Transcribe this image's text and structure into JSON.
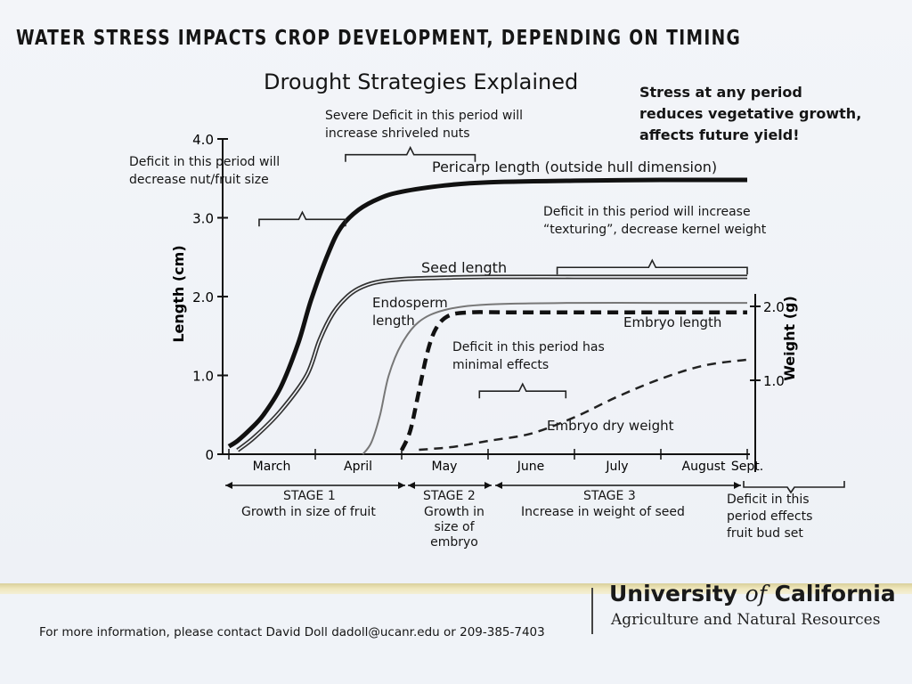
{
  "chart_data": {
    "type": "line",
    "title": "WATER STRESS IMPACTS CROP DEVELOPMENT, DEPENDING ON TIMING",
    "subtitle": "Drought Strategies Explained",
    "ylabel": "Length (cm)",
    "y2label": "Weight (g)",
    "ylim": [
      0,
      4.0
    ],
    "y2lim": [
      0,
      2.0
    ],
    "yticks": [
      "0",
      "1.0",
      "2.0",
      "3.0",
      "4.0"
    ],
    "y2ticks": [
      "1.0",
      "2.0"
    ],
    "xticks": [
      "March",
      "April",
      "May",
      "June",
      "July",
      "August",
      "Sept."
    ],
    "series": [
      {
        "name": "Pericarp length (outside hull dimension)",
        "style": "solid-thick",
        "x": [
          0.0,
          0.1,
          0.25,
          0.4,
          0.6,
          0.8,
          0.95,
          1.15,
          1.3,
          1.5,
          1.75,
          2.0,
          2.5,
          3.0,
          4.0,
          5.0,
          6.0
        ],
        "y": [
          0.1,
          0.17,
          0.32,
          0.5,
          0.85,
          1.4,
          1.95,
          2.55,
          2.88,
          3.1,
          3.25,
          3.33,
          3.41,
          3.45,
          3.47,
          3.48,
          3.48
        ]
      },
      {
        "name": "Seed length",
        "style": "solid-outline",
        "x": [
          0.1,
          0.3,
          0.6,
          0.9,
          1.05,
          1.2,
          1.35,
          1.5,
          1.7,
          2.0,
          2.5,
          3.0,
          4.0,
          5.0,
          6.0
        ],
        "y": [
          0.05,
          0.22,
          0.55,
          1.0,
          1.45,
          1.78,
          1.98,
          2.1,
          2.18,
          2.22,
          2.24,
          2.25,
          2.25,
          2.25,
          2.25
        ]
      },
      {
        "name": "Endosperm length",
        "style": "solid-thin-gray",
        "x": [
          1.55,
          1.65,
          1.75,
          1.85,
          2.0,
          2.2,
          2.5,
          3.0,
          4.0,
          5.0,
          6.0
        ],
        "y": [
          0.0,
          0.15,
          0.5,
          1.0,
          1.4,
          1.68,
          1.83,
          1.9,
          1.92,
          1.92,
          1.92
        ]
      },
      {
        "name": "Embryo length",
        "style": "dashed-thick",
        "x": [
          2.0,
          2.1,
          2.2,
          2.3,
          2.4,
          2.55,
          2.8,
          3.2,
          4.0,
          5.0,
          6.0
        ],
        "y": [
          0.05,
          0.3,
          0.8,
          1.3,
          1.6,
          1.76,
          1.8,
          1.8,
          1.8,
          1.8,
          1.8
        ]
      },
      {
        "name": "Embryo dry weight",
        "style": "dashed-thin",
        "axis": "y2",
        "x": [
          2.2,
          2.6,
          3.0,
          3.5,
          4.0,
          4.5,
          5.0,
          5.5,
          6.0
        ],
        "y": [
          0.06,
          0.1,
          0.18,
          0.28,
          0.5,
          0.78,
          1.02,
          1.2,
          1.28
        ]
      }
    ],
    "brackets": [
      {
        "label": "Deficit in this period will decrease nut/fruit size",
        "from": 0.35,
        "to": 1.35,
        "at": 2.98
      },
      {
        "label": "Severe Deficit in this period will increase shriveled nuts",
        "from": 1.35,
        "to": 2.85,
        "at": 3.8
      },
      {
        "label": "Deficit in this period will increase “texturing”, decrease kernel weight",
        "from": 3.8,
        "to": 6.0,
        "at": 2.37
      },
      {
        "label": "Deficit in this period has minimal effects",
        "from": 2.9,
        "to": 3.9,
        "at": 0.8
      }
    ],
    "stages": [
      {
        "name": "STAGE 1",
        "desc": [
          "Growth in size of fruit"
        ]
      },
      {
        "name": "STAGE 2",
        "desc": [
          "Growth in",
          "size of",
          "embryo"
        ]
      },
      {
        "name": "STAGE 3",
        "desc": [
          "Increase in weight of seed"
        ]
      }
    ],
    "annotations": {
      "stress_any": [
        "Stress at any period",
        "reduces vegetative growth,",
        "affects future yield!"
      ],
      "sept_deficit": [
        "Deficit in this",
        "period effects",
        "fruit bud set"
      ],
      "severe": [
        "Severe Deficit in this period  will",
        "increase shriveled nuts"
      ],
      "nut_size": [
        "Deficit in this period  will",
        "decrease nut/fruit size"
      ],
      "texturing": [
        "Deficit in this period  will increase",
        "“texturing”, decrease kernel weight"
      ],
      "minimal": [
        "Deficit in this period has",
        "minimal effects"
      ],
      "pericarp": "Pericarp length (outside hull dimension)",
      "seed": "Seed length",
      "endosperm": [
        "Endosperm",
        "length"
      ],
      "embryo_len": "Embryo length",
      "embryo_wt": "Embryo dry weight"
    }
  },
  "footer": {
    "contact": "For more information, please contact David Doll dadoll@ucanr.edu or 209-385-7403",
    "uc_name_1": "University ",
    "uc_name_of": "of",
    "uc_name_2": " California",
    "uc_sub": "Agriculture and Natural Resources"
  }
}
